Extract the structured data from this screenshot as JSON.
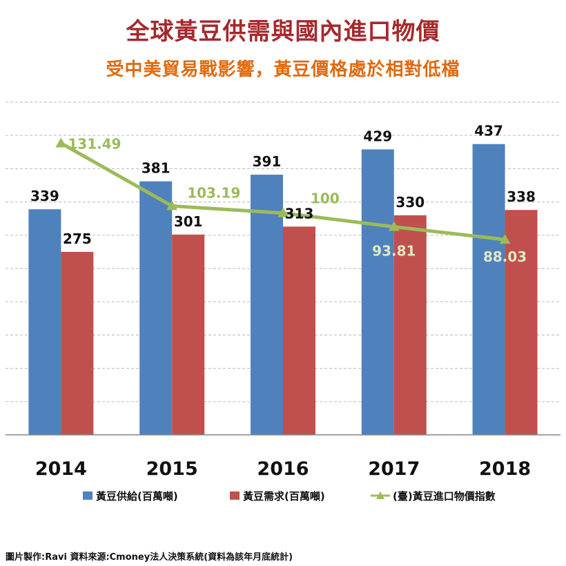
{
  "header": {
    "title": "全球黃豆供需與國內進口物價",
    "subtitle": "受中美貿易戰影響，黃豆價格處於相對低檔"
  },
  "footer": {
    "credit": "圖片製作:Ravi   資料來源:Cmoney法人決策系統(資料為該年月底統計)"
  },
  "chart_data": {
    "type": "bar",
    "categories": [
      "2014",
      "2015",
      "2016",
      "2017",
      "2018"
    ],
    "series": [
      {
        "name": "黃豆供給(百萬噸)",
        "type": "bar",
        "color": "#4f81bd",
        "values": [
          339,
          381,
          391,
          429,
          437
        ],
        "labels": [
          "339",
          "381",
          "391",
          "429",
          "437"
        ]
      },
      {
        "name": "黃豆需求(百萬噸)",
        "type": "bar",
        "color": "#c0504d",
        "values": [
          275,
          301,
          313,
          330,
          338
        ],
        "labels": [
          "275",
          "301",
          "313",
          "330",
          "338"
        ]
      },
      {
        "name": "(臺)黃豆進口物價指數",
        "type": "line",
        "color": "#9bbb59",
        "values": [
          131.49,
          103.19,
          100,
          93.81,
          88.03
        ],
        "labels": [
          "131.49",
          "103.19",
          "100",
          "93.81",
          "88.03"
        ]
      }
    ],
    "ylim": [
      0,
      500
    ],
    "ylim_line": [
      0,
      150
    ],
    "grid": true,
    "legend": "bottom"
  }
}
